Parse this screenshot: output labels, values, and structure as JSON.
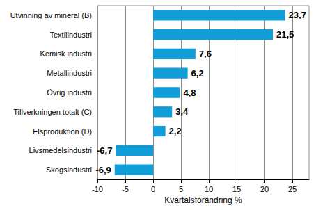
{
  "chart_data": {
    "type": "bar",
    "orientation": "horizontal",
    "xlabel": "Kvartalsförändring %",
    "categories": [
      "Utvinning av mineral (B)",
      "Textilindustri",
      "Kemisk industri",
      "Metallindustri",
      "Övrig industri",
      "Tillverkningen totalt (C)",
      "Elsproduktion (D)",
      "Livsmedelsindustri",
      "Skogsindustri"
    ],
    "values": [
      23.7,
      21.5,
      7.6,
      6.2,
      4.8,
      3.4,
      2.2,
      -6.7,
      -6.9
    ],
    "value_labels": [
      "23,7",
      "21,5",
      "7,6",
      "6,2",
      "4,8",
      "3,4",
      "2,2",
      "-6,7",
      "-6,9"
    ],
    "data_labels": true,
    "color": "#109dd8",
    "xlim": [
      -10,
      28
    ],
    "xticks": [
      -10,
      -5,
      0,
      5,
      10,
      15,
      20,
      25
    ],
    "grid": true
  }
}
